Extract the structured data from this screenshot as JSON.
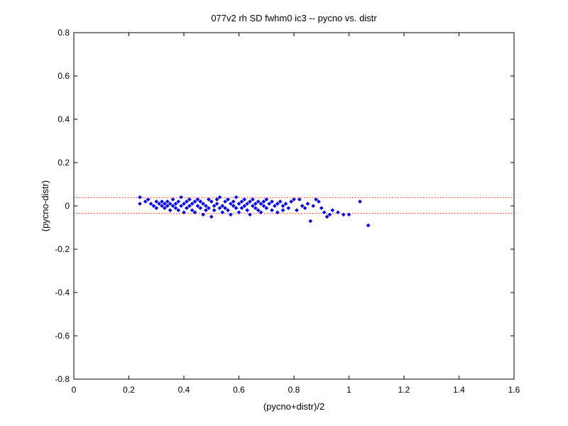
{
  "chart_data": {
    "type": "scatter",
    "title": "077v2 rh SD fwhm0 ic3 -- pycno vs. distr",
    "xlabel": "(pycno+distr)/2",
    "ylabel": "(pycno-distr)",
    "xlim": [
      0,
      1.6
    ],
    "ylim": [
      -0.8,
      0.8
    ],
    "xticks": [
      0,
      0.2,
      0.4,
      0.6,
      0.8,
      1,
      1.2,
      1.4,
      1.6
    ],
    "xtick_labels": [
      "0",
      "0.2",
      "0.4",
      "0.6",
      "0.8",
      "1",
      "1.2",
      "1.4",
      "1.6"
    ],
    "yticks": [
      -0.8,
      -0.6,
      -0.4,
      -0.2,
      0,
      0.2,
      0.4,
      0.6,
      0.8
    ],
    "ytick_labels": [
      "-0.8",
      "-0.6",
      "-0.4",
      "-0.2",
      "0",
      "0.2",
      "0.4",
      "0.6",
      "0.8"
    ],
    "grid": false,
    "marker_color": "#0000ff",
    "reference_lines": {
      "values": [
        0.038,
        -0.035
      ],
      "color": "#ff0000",
      "style": "dotted"
    },
    "series": [
      {
        "marker": "diamond",
        "points": [
          [
            0.24,
            0.04
          ],
          [
            0.24,
            0.01
          ],
          [
            0.26,
            0.02
          ],
          [
            0.27,
            0.03
          ],
          [
            0.28,
            0.01
          ],
          [
            0.29,
            0.0
          ],
          [
            0.3,
            0.02
          ],
          [
            0.3,
            -0.01
          ],
          [
            0.31,
            0.01
          ],
          [
            0.32,
            0.02
          ],
          [
            0.32,
            0.0
          ],
          [
            0.33,
            0.01
          ],
          [
            0.33,
            -0.01
          ],
          [
            0.34,
            0.02
          ],
          [
            0.34,
            0.0
          ],
          [
            0.35,
            0.01
          ],
          [
            0.35,
            -0.02
          ],
          [
            0.36,
            0.03
          ],
          [
            0.36,
            0.0
          ],
          [
            0.37,
            0.01
          ],
          [
            0.37,
            -0.01
          ],
          [
            0.38,
            0.02
          ],
          [
            0.38,
            -0.02
          ],
          [
            0.39,
            0.04
          ],
          [
            0.39,
            0.0
          ],
          [
            0.4,
            0.01
          ],
          [
            0.4,
            -0.03
          ],
          [
            0.41,
            0.02
          ],
          [
            0.41,
            -0.01
          ],
          [
            0.42,
            0.03
          ],
          [
            0.42,
            0.0
          ],
          [
            0.43,
            0.01
          ],
          [
            0.43,
            -0.02
          ],
          [
            0.44,
            0.02
          ],
          [
            0.44,
            -0.03
          ],
          [
            0.45,
            0.0
          ],
          [
            0.45,
            0.03
          ],
          [
            0.46,
            -0.01
          ],
          [
            0.46,
            0.02
          ],
          [
            0.47,
            -0.04
          ],
          [
            0.47,
            0.01
          ],
          [
            0.48,
            0.0
          ],
          [
            0.48,
            -0.02
          ],
          [
            0.49,
            0.03
          ],
          [
            0.49,
            -0.01
          ],
          [
            0.5,
            0.02
          ],
          [
            0.5,
            -0.05
          ],
          [
            0.51,
            0.0
          ],
          [
            0.51,
            -0.02
          ],
          [
            0.52,
            0.03
          ],
          [
            0.52,
            0.01
          ],
          [
            0.53,
            -0.01
          ],
          [
            0.53,
            0.04
          ],
          [
            0.54,
            0.0
          ],
          [
            0.54,
            -0.03
          ],
          [
            0.55,
            0.02
          ],
          [
            0.55,
            -0.01
          ],
          [
            0.56,
            0.03
          ],
          [
            0.56,
            -0.02
          ],
          [
            0.57,
            0.01
          ],
          [
            0.57,
            -0.04
          ],
          [
            0.58,
            0.02
          ],
          [
            0.58,
            0.0
          ],
          [
            0.59,
            -0.01
          ],
          [
            0.59,
            0.04
          ],
          [
            0.6,
            0.01
          ],
          [
            0.6,
            -0.03
          ],
          [
            0.61,
            0.02
          ],
          [
            0.61,
            -0.01
          ],
          [
            0.62,
            0.03
          ],
          [
            0.62,
            0.0
          ],
          [
            0.63,
            -0.02
          ],
          [
            0.63,
            0.01
          ],
          [
            0.64,
            0.02
          ],
          [
            0.64,
            -0.04
          ],
          [
            0.65,
            0.0
          ],
          [
            0.65,
            0.03
          ],
          [
            0.66,
            -0.01
          ],
          [
            0.66,
            0.01
          ],
          [
            0.67,
            0.02
          ],
          [
            0.67,
            -0.02
          ],
          [
            0.68,
            0.01
          ],
          [
            0.68,
            -0.03
          ],
          [
            0.69,
            0.02
          ],
          [
            0.69,
            0.0
          ],
          [
            0.7,
            0.03
          ],
          [
            0.7,
            -0.01
          ],
          [
            0.71,
            0.01
          ],
          [
            0.72,
            -0.02
          ],
          [
            0.72,
            0.02
          ],
          [
            0.73,
            0.0
          ],
          [
            0.74,
            0.01
          ],
          [
            0.74,
            -0.03
          ],
          [
            0.75,
            0.02
          ],
          [
            0.76,
            0.0
          ],
          [
            0.76,
            -0.02
          ],
          [
            0.77,
            0.01
          ],
          [
            0.78,
            -0.01
          ],
          [
            0.79,
            0.02
          ],
          [
            0.8,
            0.03
          ],
          [
            0.81,
            -0.02
          ],
          [
            0.82,
            0.03
          ],
          [
            0.83,
            0.0
          ],
          [
            0.84,
            -0.01
          ],
          [
            0.85,
            0.01
          ],
          [
            0.86,
            -0.07
          ],
          [
            0.87,
            0.0
          ],
          [
            0.88,
            0.03
          ],
          [
            0.89,
            0.02
          ],
          [
            0.9,
            -0.01
          ],
          [
            0.91,
            -0.03
          ],
          [
            0.92,
            -0.05
          ],
          [
            0.93,
            -0.04
          ],
          [
            0.94,
            -0.02
          ],
          [
            0.96,
            -0.03
          ],
          [
            0.98,
            -0.04
          ],
          [
            1.0,
            -0.04
          ],
          [
            1.04,
            0.02
          ],
          [
            1.07,
            -0.09
          ]
        ]
      }
    ]
  }
}
